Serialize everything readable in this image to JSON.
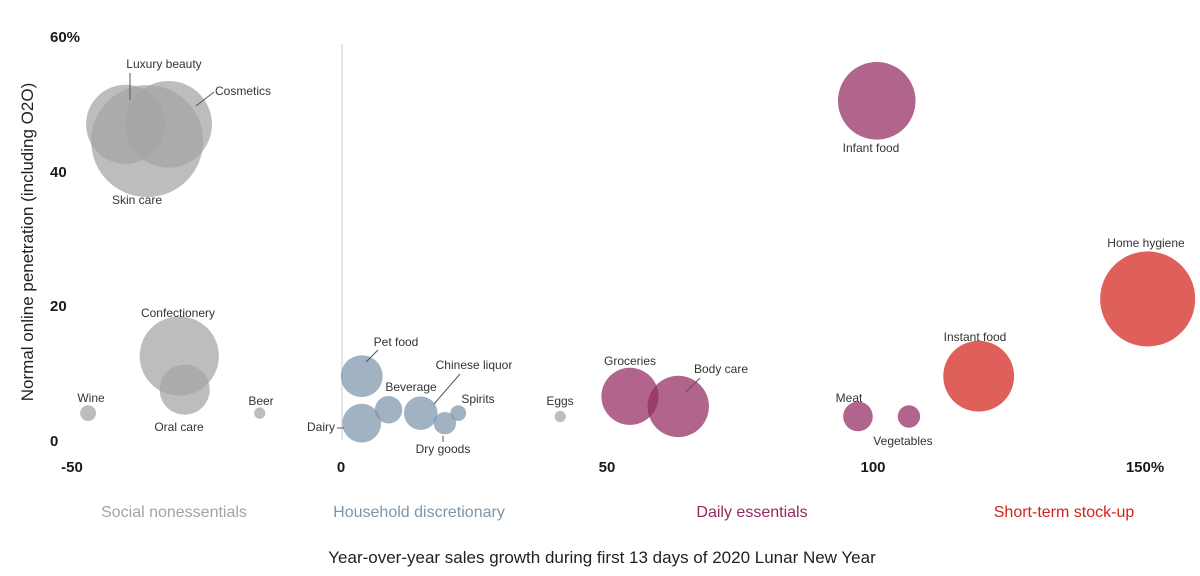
{
  "chart_data": {
    "type": "scatter",
    "subtype": "bubble",
    "xlabel": "Year-over-year sales growth during first 13 days of 2020 Lunar New Year",
    "ylabel": "Normal online penetration (including O2O)",
    "xlim": [
      -50,
      150
    ],
    "ylim": [
      0,
      60
    ],
    "x_ticks": [
      "-50",
      "0",
      "50",
      "100",
      "150%"
    ],
    "y_ticks": [
      "0",
      "20",
      "40",
      "60%"
    ],
    "grid": false,
    "zero_line": "x=0",
    "groups": [
      {
        "name": "Social nonessentials",
        "color": "#a3a3a3"
      },
      {
        "name": "Household discretionary",
        "color": "#7d96ab"
      },
      {
        "name": "Daily essentials",
        "color": "#93295f"
      },
      {
        "name": "Short-term stock-up",
        "color": "#d2221c"
      }
    ],
    "points": [
      {
        "label": "Skin care",
        "group": 0,
        "x": -36,
        "y": 44.5,
        "size": 1.0
      },
      {
        "label": "Luxury beauty",
        "group": 0,
        "x": -40,
        "y": 47,
        "size": 0.5
      },
      {
        "label": "Cosmetics",
        "group": 0,
        "x": -32,
        "y": 47,
        "size": 0.6
      },
      {
        "label": "Confectionery",
        "group": 0,
        "x": -30,
        "y": 12.5,
        "size": 0.5
      },
      {
        "label": "Oral care",
        "group": 0,
        "x": -29,
        "y": 7.5,
        "size": 0.2
      },
      {
        "label": "Wine",
        "group": 0,
        "x": -47,
        "y": 4,
        "size": 0.02
      },
      {
        "label": "Beer",
        "group": 0,
        "x": -15,
        "y": 4,
        "size": 0.01
      },
      {
        "label": "Pet food",
        "group": 1,
        "x": 4,
        "y": 9.5,
        "size": 0.14
      },
      {
        "label": "Dairy",
        "group": 1,
        "x": 4,
        "y": 2.5,
        "size": 0.12
      },
      {
        "label": "Beverage",
        "group": 1,
        "x": 9,
        "y": 4.5,
        "size": 0.06
      },
      {
        "label": "Chinese liquor",
        "group": 1,
        "x": 15,
        "y": 4,
        "size": 0.09
      },
      {
        "label": "Dry goods",
        "group": 1,
        "x": 19.5,
        "y": 2.5,
        "size": 0.04
      },
      {
        "label": "Spirits",
        "group": 1,
        "x": 22,
        "y": 4,
        "size": 0.02
      },
      {
        "label": "Eggs",
        "group": 0,
        "x": 41,
        "y": 3.5,
        "size": 0.01
      },
      {
        "label": "Groceries",
        "group": 2,
        "x": 54,
        "y": 6.5,
        "size": 0.26
      },
      {
        "label": "Body care",
        "group": 2,
        "x": 63,
        "y": 5,
        "size": 0.3
      },
      {
        "label": "Infant food",
        "group": 2,
        "x": 100,
        "y": 50.5,
        "size": 0.48
      },
      {
        "label": "Meat",
        "group": 2,
        "x": 96.5,
        "y": 3.5,
        "size": 0.07
      },
      {
        "label": "Vegetables",
        "group": 2,
        "x": 106,
        "y": 3.5,
        "size": 0.04
      },
      {
        "label": "Instant food",
        "group": 3,
        "x": 119,
        "y": 9.5,
        "size": 0.4
      },
      {
        "label": "Home hygiene",
        "group": 3,
        "x": 150.5,
        "y": 21,
        "size": 0.72
      }
    ]
  }
}
